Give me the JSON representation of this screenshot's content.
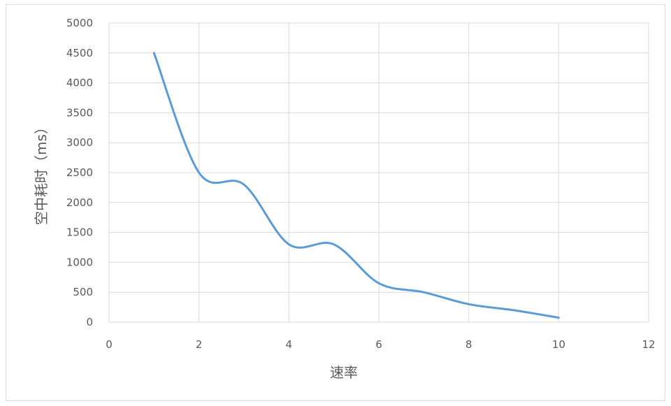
{
  "chart_data": {
    "type": "line",
    "title": "",
    "xlabel": "速率",
    "ylabel": "空中耗时（ms）",
    "xlim": [
      0,
      12
    ],
    "ylim": [
      0,
      5000
    ],
    "x_ticks": [
      "0",
      "2",
      "4",
      "6",
      "8",
      "10",
      "12"
    ],
    "y_ticks": [
      "0",
      "500",
      "1000",
      "1500",
      "2000",
      "2500",
      "3000",
      "3500",
      "4000",
      "4500",
      "5000"
    ],
    "grid": true,
    "legend": "none",
    "smooth": true,
    "series": [
      {
        "color": "#5b9bd5",
        "x": [
          1,
          2,
          3,
          4,
          5,
          6,
          7,
          8,
          9,
          10
        ],
        "y": [
          4500,
          2500,
          2300,
          1300,
          1300,
          650,
          500,
          300,
          200,
          75
        ]
      }
    ]
  }
}
